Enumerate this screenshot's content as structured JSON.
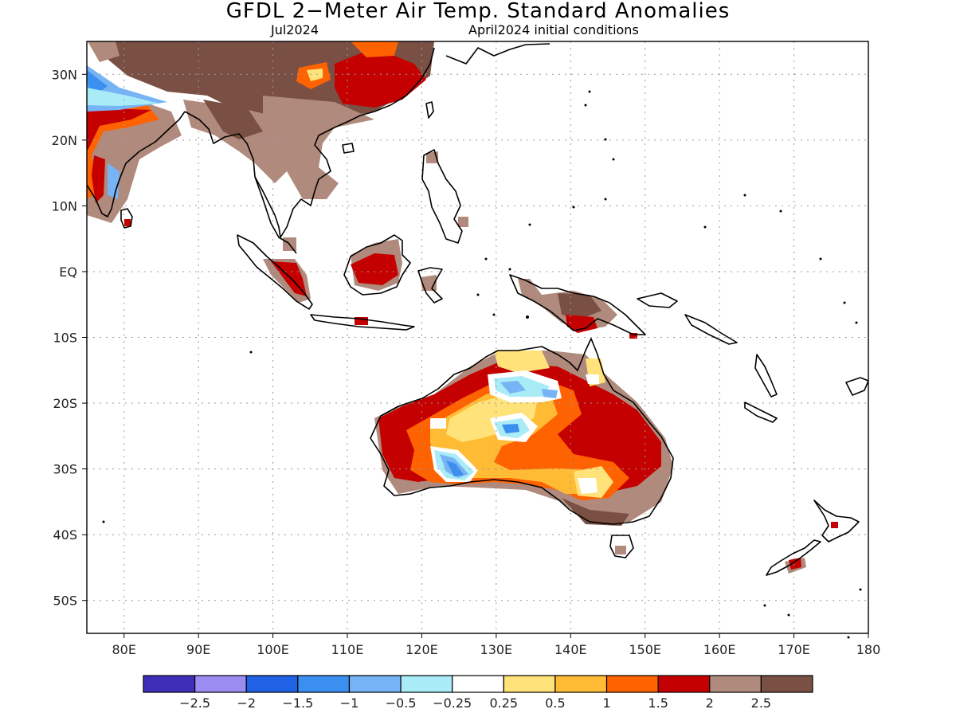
{
  "title": "GFDL 2−Meter Air Temp. Standard Anomalies",
  "subtitle_left": "Jul2024",
  "subtitle_right": "April2024 initial conditions",
  "map": {
    "lon_range": [
      75,
      180
    ],
    "lat_range": [
      -55,
      35
    ],
    "x_ticks": [
      {
        "value": 80,
        "label": "80E"
      },
      {
        "value": 90,
        "label": "90E"
      },
      {
        "value": 100,
        "label": "100E"
      },
      {
        "value": 110,
        "label": "110E"
      },
      {
        "value": 120,
        "label": "120E"
      },
      {
        "value": 130,
        "label": "130E"
      },
      {
        "value": 140,
        "label": "140E"
      },
      {
        "value": 150,
        "label": "150E"
      },
      {
        "value": 160,
        "label": "160E"
      },
      {
        "value": 170,
        "label": "170E"
      },
      {
        "value": 180,
        "label": "180"
      }
    ],
    "y_ticks": [
      {
        "value": 30,
        "label": "30N"
      },
      {
        "value": 20,
        "label": "20N"
      },
      {
        "value": 10,
        "label": "10N"
      },
      {
        "value": 0,
        "label": "EQ"
      },
      {
        "value": -10,
        "label": "10S"
      },
      {
        "value": -20,
        "label": "20S"
      },
      {
        "value": -30,
        "label": "30S"
      },
      {
        "value": -40,
        "label": "40S"
      },
      {
        "value": -50,
        "label": "50S"
      }
    ],
    "grid": true
  },
  "legend": {
    "colors": [
      "#3f2fb8",
      "#9b8cf2",
      "#1f62e6",
      "#3b8ff0",
      "#76b4f5",
      "#a9ecf7",
      "#ffffff",
      "#ffe27a",
      "#ffbb33",
      "#ff6200",
      "#c40000",
      "#b08a7c",
      "#7a5044"
    ],
    "labels": [
      "−2.5",
      "−2",
      "−1.5",
      "−1",
      "−0.5",
      "−0.25",
      "0.25",
      "0.5",
      "1",
      "1.5",
      "2",
      "2.5"
    ]
  },
  "colors": {
    "coast": "#000000",
    "grid": "#9a9a9a"
  }
}
